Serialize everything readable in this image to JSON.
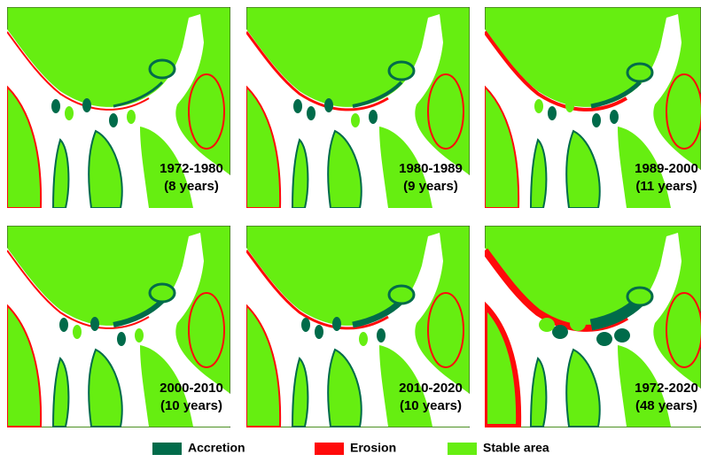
{
  "panels": [
    {
      "period": "1972-1980",
      "duration": "(8 years)"
    },
    {
      "period": "1980-1989",
      "duration": "(9 years)"
    },
    {
      "period": "1989-2000",
      "duration": "(11 years)"
    },
    {
      "period": "2000-2010",
      "duration": "(10 years)"
    },
    {
      "period": "2010-2020",
      "duration": "(10 years)"
    },
    {
      "period": "1972-2020",
      "duration": "(48 years)"
    }
  ],
  "legend": [
    {
      "label": "Accretion",
      "color": "#006b4a"
    },
    {
      "label": "Erosion",
      "color": "#ff0a0a"
    },
    {
      "label": "Stable area",
      "color": "#66ee11"
    }
  ]
}
